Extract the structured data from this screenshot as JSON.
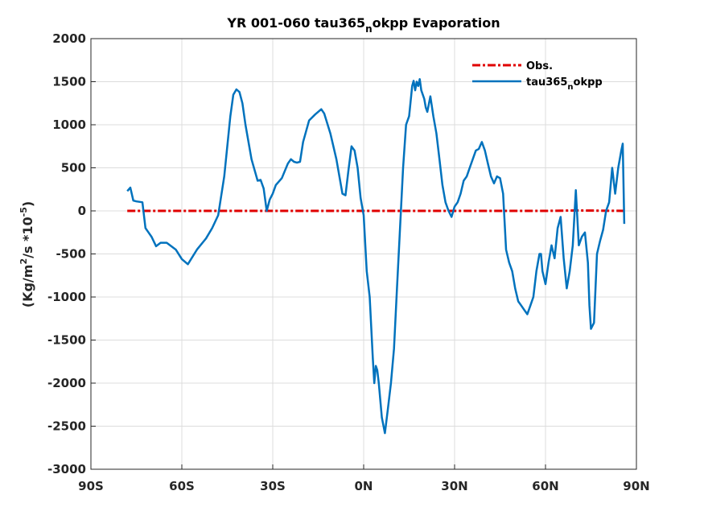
{
  "chart_data": {
    "type": "line",
    "title": {
      "pre": "YR 001-060 tau365",
      "sub": "n",
      "post": "okpp Evaporation"
    },
    "ylabel": {
      "a": "(Kg/m",
      "sup1": "2",
      "b": "/s *10",
      "sup2": "-5",
      "c": ")"
    },
    "xlim": [
      -90,
      90
    ],
    "ylim": [
      -3000,
      2000
    ],
    "xticks": [
      -90,
      -60,
      -30,
      0,
      30,
      60,
      90
    ],
    "xtick_labels": [
      "90S",
      "60S",
      "30S",
      "0N",
      "30N",
      "60N",
      "90N"
    ],
    "yticks": [
      -3000,
      -2500,
      -2000,
      -1500,
      -1000,
      -500,
      0,
      500,
      1000,
      1500,
      2000
    ],
    "ytick_labels": [
      "-3000",
      "-2500",
      "-2000",
      "-1500",
      "-1000",
      "-500",
      "0",
      "500",
      "1000",
      "1500",
      "2000"
    ],
    "grid": true,
    "legend_position": "top-right",
    "series": [
      {
        "name": "Obs.",
        "legend": {
          "pre": "Obs.",
          "sub": "",
          "post": ""
        },
        "color": "#e00000",
        "style": "dashdot",
        "x": [
          -78,
          -60,
          -30,
          0,
          30,
          60,
          70,
          86
        ],
        "y": [
          0,
          0,
          0,
          0,
          0,
          0,
          5,
          0
        ]
      },
      {
        "name": "tau365_nokpp",
        "legend": {
          "pre": "tau365",
          "sub": "n",
          "post": "okpp"
        },
        "color": "#0072bd",
        "style": "solid",
        "x": [
          -78,
          -77,
          -76,
          -75,
          -73,
          -72,
          -71,
          -70,
          -68.5,
          -67,
          -65,
          -62,
          -60,
          -58,
          -55,
          -52,
          -50,
          -48,
          -46,
          -44,
          -43,
          -42,
          -41,
          -40,
          -39,
          -37,
          -35,
          -34,
          -33,
          -32,
          -31,
          -30,
          -29,
          -27,
          -25,
          -24,
          -23,
          -22,
          -21,
          -20,
          -18,
          -16,
          -14,
          -13,
          -11,
          -9,
          -7,
          -6,
          -5,
          -4,
          -3,
          -2,
          -1,
          0,
          1,
          2,
          3,
          3.5,
          4,
          4.5,
          5,
          6,
          7,
          8,
          9,
          10,
          11,
          12,
          13,
          14,
          15,
          16,
          16.5,
          17,
          17.5,
          18,
          18.5,
          19,
          20,
          20.5,
          21,
          22,
          23,
          24,
          25,
          26,
          27,
          28,
          29,
          30,
          31,
          32,
          33,
          34,
          35,
          37,
          38,
          39,
          40,
          41,
          42,
          43,
          44,
          45,
          46,
          47,
          48,
          49,
          50,
          51,
          52,
          53,
          54,
          55,
          56,
          57,
          58,
          58.5,
          59,
          60,
          61,
          62,
          63,
          64,
          65,
          66,
          67,
          68,
          69,
          70,
          71,
          72,
          73,
          74,
          74.5,
          75,
          76,
          77,
          78,
          79,
          80,
          81,
          82,
          83,
          84,
          85,
          85.5,
          86
        ],
        "y": [
          230,
          270,
          120,
          110,
          100,
          -200,
          -250,
          -300,
          -410,
          -370,
          -370,
          -450,
          -560,
          -620,
          -450,
          -320,
          -200,
          -50,
          400,
          1100,
          1350,
          1410,
          1380,
          1250,
          1000,
          600,
          350,
          360,
          260,
          0,
          130,
          200,
          300,
          380,
          550,
          600,
          570,
          560,
          570,
          800,
          1050,
          1120,
          1180,
          1130,
          900,
          600,
          200,
          180,
          480,
          750,
          700,
          500,
          150,
          -50,
          -700,
          -1000,
          -1700,
          -2000,
          -1800,
          -1850,
          -2000,
          -2400,
          -2580,
          -2300,
          -2000,
          -1600,
          -900,
          -200,
          500,
          1000,
          1100,
          1450,
          1510,
          1400,
          1500,
          1450,
          1530,
          1400,
          1300,
          1200,
          1150,
          1330,
          1100,
          900,
          600,
          300,
          100,
          0,
          -70,
          50,
          100,
          200,
          350,
          400,
          500,
          700,
          720,
          800,
          700,
          550,
          400,
          320,
          400,
          380,
          200,
          -450,
          -600,
          -700,
          -900,
          -1050,
          -1100,
          -1150,
          -1200,
          -1100,
          -1000,
          -700,
          -500,
          -500,
          -700,
          -850,
          -600,
          -400,
          -550,
          -200,
          -70,
          -550,
          -900,
          -700,
          -400,
          240,
          -400,
          -300,
          -250,
          -600,
          -1100,
          -1370,
          -1300,
          -500,
          -350,
          -220,
          0,
          100,
          500,
          200,
          500,
          700,
          780,
          -150
        ]
      }
    ]
  }
}
